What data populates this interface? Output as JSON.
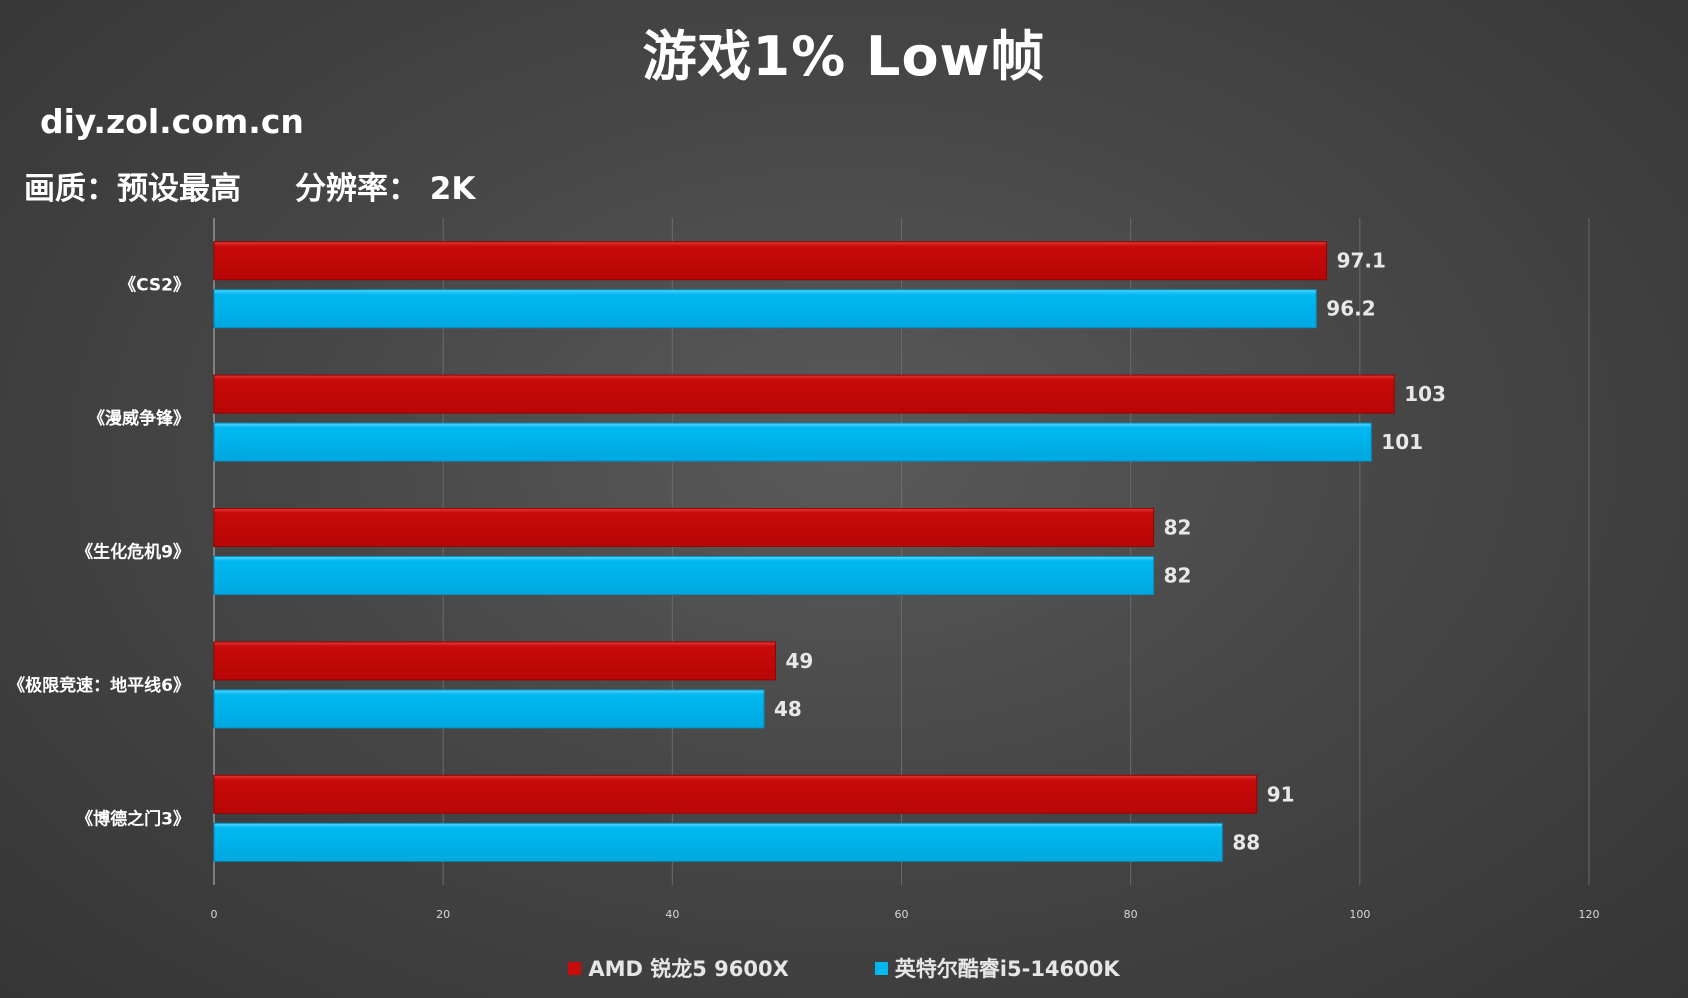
{
  "header": {
    "title": "游戏1% Low帧",
    "site": "diy.zol.com.cn",
    "subtitle": "画质：预设最高     分辨率： 2K"
  },
  "colors": {
    "series_red": "#c80a0a",
    "series_blue": "#00b8f0",
    "grid": "#6a6a6a",
    "axis_text": "#d8d8d8"
  },
  "chart_data": {
    "type": "bar",
    "orientation": "horizontal",
    "categories": [
      "《CS2》",
      "《漫威争锋》",
      "《生化危机9》",
      "《极限竞速：地平线6》",
      "《博德之门3》"
    ],
    "series": [
      {
        "name": "AMD 锐龙5 9600X",
        "values": [
          97.1,
          103,
          82,
          49,
          91
        ],
        "labels": [
          "97.1",
          "103",
          "82",
          "49",
          "91"
        ]
      },
      {
        "name": "英特尔酷睿i5-14600K",
        "values": [
          96.2,
          101,
          82,
          48,
          88
        ],
        "labels": [
          "96.2",
          "101",
          "82",
          "48",
          "88"
        ]
      }
    ],
    "xlim": [
      0,
      120
    ],
    "xticks": [
      0,
      20,
      40,
      60,
      80,
      100,
      120
    ],
    "grid": true,
    "legend_position": "bottom"
  }
}
